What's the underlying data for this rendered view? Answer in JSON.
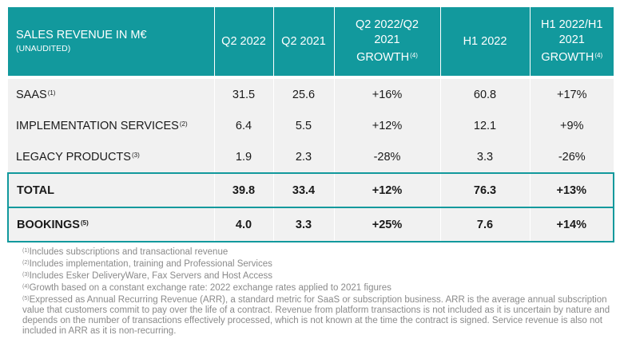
{
  "header": {
    "label_main": "SALES REVENUE IN M€",
    "label_sub": "(UNAUDITED)",
    "q2_2022": "Q2 2022",
    "q2_2021": "Q2 2021",
    "q2_growth_l1": "Q2 2022/Q2",
    "q2_growth_l2": "2021",
    "q2_growth_l3": "GROWTH",
    "q2_growth_ref": "(4)",
    "h1_2022": "H1 2022",
    "h1_growth_l1": "H1 2022/H1",
    "h1_growth_l2": "2021",
    "h1_growth_l3": "GROWTH",
    "h1_growth_ref": "(4)"
  },
  "rows": [
    {
      "label": "SAAS",
      "ref": "(1)",
      "q2_2022": "31.5",
      "q2_2021": "25.6",
      "q2_growth": "+16%",
      "h1_2022": "60.8",
      "h1_growth": "+17%"
    },
    {
      "label": "IMPLEMENTATION SERVICES",
      "ref": "(2)",
      "q2_2022": "6.4",
      "q2_2021": "5.5",
      "q2_growth": "+12%",
      "h1_2022": "12.1",
      "h1_growth": "+9%"
    },
    {
      "label": "LEGACY PRODUCTS",
      "ref": "(3)",
      "q2_2022": "1.9",
      "q2_2021": "2.3",
      "q2_growth": "-28%",
      "h1_2022": "3.3",
      "h1_growth": "-26%"
    },
    {
      "label": "TOTAL",
      "ref": "",
      "q2_2022": "39.8",
      "q2_2021": "33.4",
      "q2_growth": "+12%",
      "h1_2022": "76.3",
      "h1_growth": "+13%"
    },
    {
      "label": "BOOKINGS",
      "ref": "(5)",
      "q2_2022": "4.0",
      "q2_2021": "3.3",
      "q2_growth": "+25%",
      "h1_2022": "7.6",
      "h1_growth": "+14%"
    }
  ],
  "footnotes": [
    {
      "ref": "(1)",
      "text": "Includes subscriptions and transactional revenue"
    },
    {
      "ref": "(2)",
      "text": "Includes implementation, training and Professional Services"
    },
    {
      "ref": "(3)",
      "text": "Includes Esker DeliveryWare, Fax Servers and Host Access"
    },
    {
      "ref": "(4)",
      "text": "Growth based on a constant exchange rate: 2022 exchange rates applied to 2021 figures"
    },
    {
      "ref": "(5)",
      "text": "Expressed as Annual Recurring Revenue (ARR), a standard metric for SaaS or subscription business. ARR is the average annual subscription value that customers commit to pay over the life of a contract. Revenue from platform transactions is not included as it is uncertain by nature and depends on the number of transactions effectively processed, which is not known at the time the contract is signed. Service revenue is also not included in ARR as it is non-recurring."
    }
  ],
  "colors": {
    "header_bg": "#12999d",
    "row_bg": "#f1f1f1",
    "accent_border": "#12999d",
    "footnote_text": "#8a8a8a"
  }
}
